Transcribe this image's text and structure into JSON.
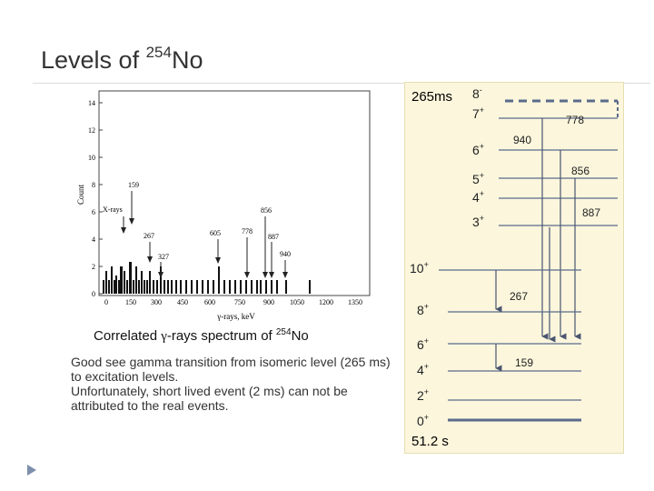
{
  "slide": {
    "title": "Levels of",
    "title_isotope_mass": "254",
    "title_isotope_symbol": "No"
  },
  "spectrum": {
    "x_axis_label": "γ-rays, keV",
    "y_axis_label": "Count",
    "x_ticks": [
      "0",
      "150",
      "300",
      "450",
      "600",
      "750",
      "900",
      "1050",
      "1200",
      "1350"
    ],
    "y_ticks": [
      "0",
      "2",
      "4",
      "6",
      "8",
      "10",
      "12",
      "14"
    ],
    "peak_labels": [
      "X-rays",
      "159",
      "267",
      "327",
      "605",
      "778",
      "856",
      "887",
      "940"
    ]
  },
  "caption": {
    "text_before": "Correlated ",
    "gamma": "γ",
    "text_after": "-rays spectrum of ",
    "mass": "254",
    "symbol": "No"
  },
  "description": {
    "line1": "Good see gamma transition from isomeric level (265 ms) to excitation levels.",
    "line2": "Unfortunately, short lived event (2 ms) can not be attributed to the real events."
  },
  "level_scheme": {
    "isomer_lifetime": "265ms",
    "ground_lifetime": "51.2 s",
    "isomer_levels": [
      {
        "spin": "8",
        "parity": "-"
      },
      {
        "spin": "7",
        "parity": "+"
      },
      {
        "spin": "6",
        "parity": "+"
      },
      {
        "spin": "5",
        "parity": "+"
      },
      {
        "spin": "4",
        "parity": "+"
      },
      {
        "spin": "3",
        "parity": "+"
      }
    ],
    "band_levels": [
      {
        "spin": "10",
        "parity": "+"
      },
      {
        "spin": "8",
        "parity": "+"
      },
      {
        "spin": "6",
        "parity": "+"
      },
      {
        "spin": "4",
        "parity": "+"
      },
      {
        "spin": "2",
        "parity": "+"
      },
      {
        "spin": "0",
        "parity": "+"
      }
    ],
    "transitions": [
      "778",
      "940",
      "856",
      "887",
      "267",
      "159"
    ]
  },
  "colors": {
    "panel_bg": "#fbf6dc",
    "level_line": "#5a6b8c",
    "arrow": "#4a5570",
    "text": "#222222"
  }
}
